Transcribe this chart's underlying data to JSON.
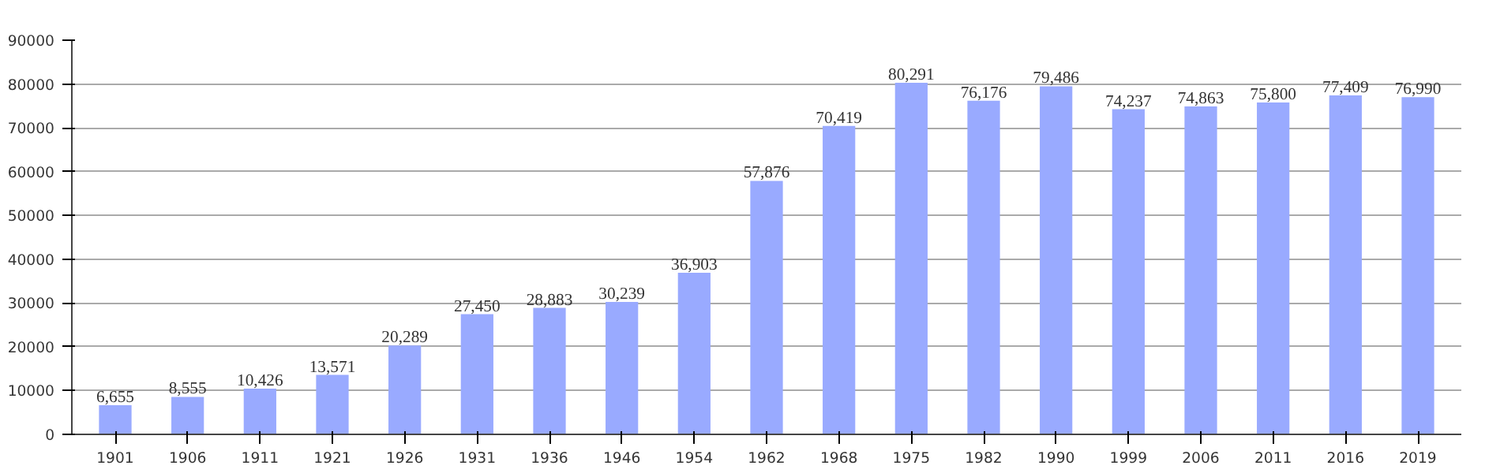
{
  "chart_data": {
    "type": "bar",
    "categories": [
      "1901",
      "1906",
      "1911",
      "1921",
      "1926",
      "1931",
      "1936",
      "1946",
      "1954",
      "1962",
      "1968",
      "1975",
      "1982",
      "1990",
      "1999",
      "2006",
      "2011",
      "2016",
      "2019"
    ],
    "values": [
      6655,
      8555,
      10426,
      13571,
      20289,
      27450,
      28883,
      30239,
      36903,
      57876,
      70419,
      80291,
      76176,
      79486,
      74237,
      74863,
      75800,
      77409,
      76990
    ],
    "value_labels": [
      "6,655",
      "8,555",
      "10,426",
      "13,571",
      "20,289",
      "27,450",
      "28,883",
      "30,239",
      "36,903",
      "57,876",
      "70,419",
      "80,291",
      "76,176",
      "79,486",
      "74,237",
      "74,863",
      "75,800",
      "77,409",
      "76,990"
    ],
    "color": "#99aaff",
    "ylim": [
      0,
      90000
    ],
    "yticks": [
      0,
      10000,
      20000,
      30000,
      40000,
      50000,
      60000,
      70000,
      80000,
      90000
    ],
    "grid": "y"
  }
}
